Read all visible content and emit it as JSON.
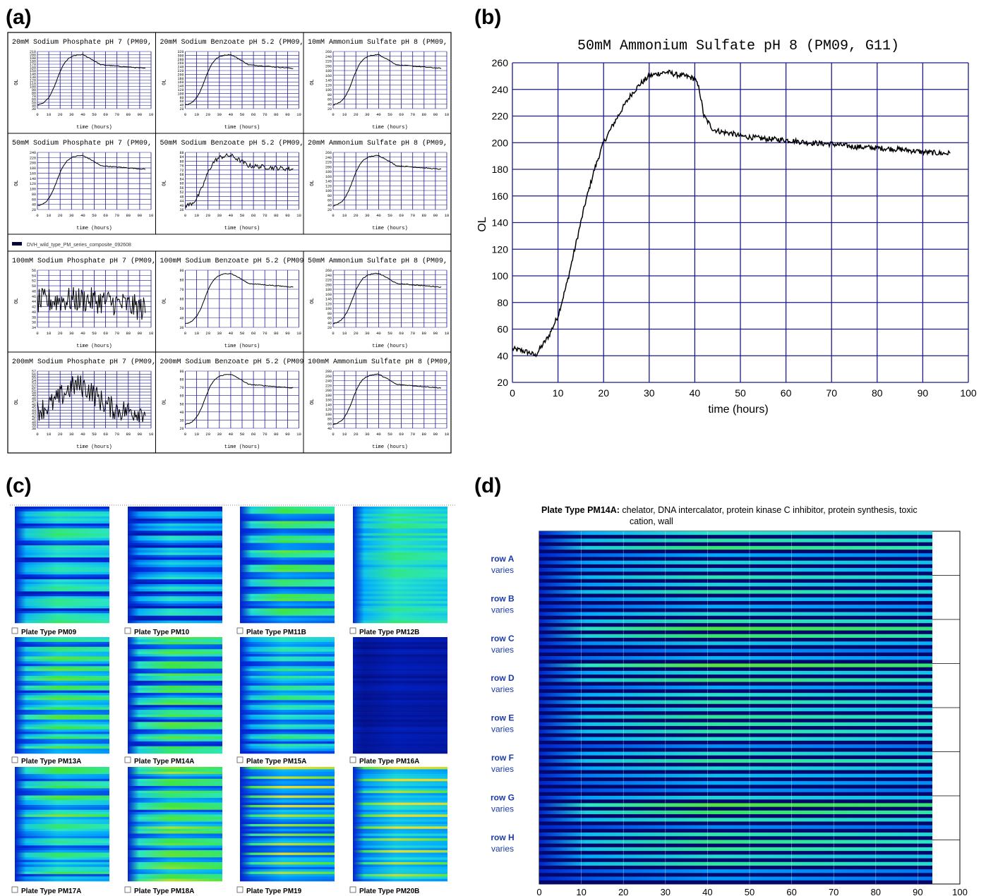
{
  "panel_labels": {
    "a": "(a)",
    "b": "(b)",
    "c": "(c)",
    "d": "(d)"
  },
  "colors": {
    "grid": "#1a1a8c",
    "line": "#000000",
    "heat_low": "#08006e",
    "heat_mid": "#00c8ff",
    "heat_high": "#f0e040"
  },
  "panel_a": {
    "xlabel": "time (hours)",
    "ylabel": "OL",
    "xticks": [
      "0",
      "10",
      "20",
      "30",
      "40",
      "50",
      "60",
      "70",
      "80",
      "90",
      "10"
    ],
    "legend": "DVH_wild_type_PM_series_composite_092608",
    "plots": [
      {
        "title": "20mM Sodium Phosphate pH 7 (PM09,",
        "yticks": [
          "210",
          "200",
          "190",
          "180",
          "170",
          "160",
          "150",
          "140",
          "130",
          "120",
          "110",
          "100",
          "90",
          "80",
          "70",
          "60",
          "50",
          "40",
          "30"
        ]
      },
      {
        "title": "20mM Sodium Benzoate pH 5.2 (PM09,",
        "yticks": [
          "320",
          "300",
          "280",
          "260",
          "240",
          "220",
          "200",
          "180",
          "160",
          "140",
          "120",
          "100",
          "80",
          "60",
          "40",
          "20"
        ]
      },
      {
        "title": "10mM Ammonium Sulfate pH 8 (PM09,",
        "yticks": [
          "260",
          "240",
          "220",
          "200",
          "180",
          "160",
          "140",
          "120",
          "100",
          "80",
          "60",
          "40",
          "20"
        ]
      },
      {
        "title": "50mM Sodium Phosphate pH 7 (PM09,",
        "yticks": [
          "240",
          "220",
          "200",
          "180",
          "160",
          "140",
          "120",
          "100",
          "80",
          "60",
          "40",
          "20"
        ]
      },
      {
        "title": "50mM Sodium Benzoate pH 5.2 (PM09,",
        "yticks": [
          "88",
          "84",
          "80",
          "76",
          "72",
          "68",
          "64",
          "60",
          "56",
          "52",
          "48",
          "44",
          "40",
          "36"
        ]
      },
      {
        "title": "20mM Ammonium Sulfate pH 8 (PM09,",
        "yticks": [
          "260",
          "240",
          "220",
          "200",
          "180",
          "160",
          "140",
          "120",
          "100",
          "80",
          "60",
          "40",
          "20"
        ]
      },
      {
        "title": "100mM Sodium Phosphate pH 7 (PM09,",
        "yticks": [
          "56",
          "54",
          "52",
          "50",
          "48",
          "46",
          "44",
          "42",
          "40",
          "38",
          "36",
          "34"
        ]
      },
      {
        "title": "100mM Sodium Benzoate pH 5.2 (PM09",
        "yticks": [
          "90",
          "80",
          "70",
          "60",
          "50",
          "40",
          "30"
        ]
      },
      {
        "title": "50mM Ammonium Sulfate pH 8 (PM09,",
        "yticks": [
          "260",
          "240",
          "220",
          "200",
          "180",
          "160",
          "140",
          "120",
          "100",
          "80",
          "60",
          "40",
          "20"
        ]
      },
      {
        "title": "200mM Sodium Phosphate pH 7 (PM09,",
        "yticks": [
          "57",
          "56",
          "55",
          "54",
          "53",
          "52",
          "51",
          "50",
          "49",
          "48",
          "47",
          "46",
          "45",
          "44",
          "43",
          "42",
          "41",
          "40",
          "39",
          "38"
        ]
      },
      {
        "title": "200mM Sodium Benzoate pH 5.2 (PM09",
        "yticks": [
          "90",
          "80",
          "70",
          "60",
          "50",
          "40",
          "30",
          "20"
        ]
      },
      {
        "title": "100mM Ammonium Sulfate pH 8 (PM09,",
        "yticks": [
          "280",
          "260",
          "240",
          "220",
          "200",
          "180",
          "160",
          "140",
          "120",
          "100",
          "80",
          "60",
          "40"
        ]
      }
    ]
  },
  "panel_c": {
    "plates": [
      "Plate Type PM09",
      "Plate Type PM10",
      "Plate Type PM11B",
      "Plate Type PM12B",
      "Plate Type PM13A",
      "Plate Type PM14A",
      "Plate Type PM15A",
      "Plate Type PM16A",
      "Plate Type PM17A",
      "Plate Type PM18A",
      "Plate Type PM19",
      "Plate Type PM20B"
    ]
  },
  "panel_d": {
    "title_bold": "Plate Type PM14A:",
    "title_rest": "chelator, DNA intercalator, protein kinase C inhibitor, protein synthesis, toxic",
    "title_line2": "cation, wall",
    "rows": [
      {
        "name": "row A",
        "sub": "varies"
      },
      {
        "name": "row B",
        "sub": "varies"
      },
      {
        "name": "row C",
        "sub": "varies"
      },
      {
        "name": "row D",
        "sub": "varies"
      },
      {
        "name": "row E",
        "sub": "varies"
      },
      {
        "name": "row F",
        "sub": "varies"
      },
      {
        "name": "row G",
        "sub": "varies"
      },
      {
        "name": "row H",
        "sub": "varies"
      }
    ],
    "xticks": [
      "0",
      "10",
      "20",
      "30",
      "40",
      "50",
      "60",
      "70",
      "80",
      "90",
      "100"
    ]
  },
  "chart_data": [
    {
      "type": "line",
      "title": "50mM Ammonium Sulfate pH 8 (PM09, G11)",
      "xlabel": "time (hours)",
      "ylabel": "OL",
      "xlim": [
        0,
        100
      ],
      "ylim": [
        20,
        260
      ],
      "xticks": [
        "0",
        "10",
        "20",
        "30",
        "40",
        "50",
        "60",
        "70",
        "80",
        "90",
        "100"
      ],
      "yticks": [
        "20",
        "40",
        "60",
        "80",
        "100",
        "120",
        "140",
        "160",
        "180",
        "200",
        "220",
        "240",
        "260"
      ],
      "grid": true,
      "x": [
        0,
        2,
        4,
        5,
        6,
        8,
        10,
        12,
        14,
        16,
        18,
        20,
        22,
        24,
        26,
        28,
        30,
        32,
        34,
        36,
        38,
        40,
        41,
        42,
        44,
        46,
        48,
        50,
        55,
        60,
        65,
        70,
        75,
        80,
        85,
        90,
        94,
        96
      ],
      "y": [
        45,
        44,
        42,
        40,
        45,
        55,
        70,
        95,
        125,
        155,
        180,
        200,
        213,
        225,
        236,
        244,
        250,
        252,
        253,
        251,
        250,
        248,
        240,
        220,
        210,
        208,
        207,
        205,
        203,
        202,
        200,
        199,
        197,
        196,
        195,
        193,
        192,
        192
      ]
    }
  ]
}
